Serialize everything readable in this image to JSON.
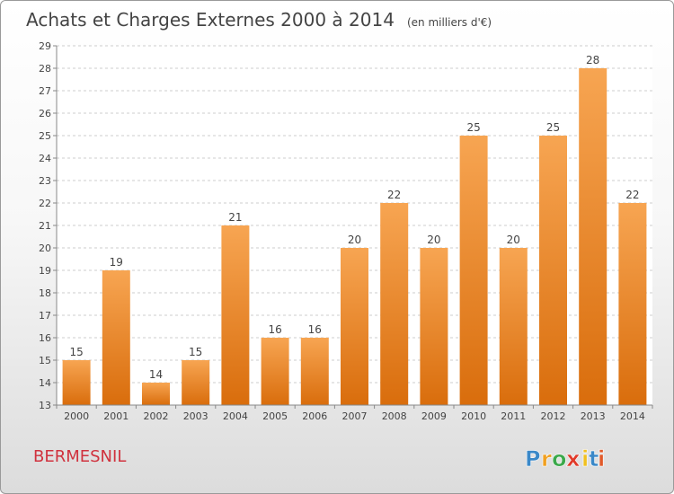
{
  "chart_data": {
    "type": "bar",
    "title": "Achats et Charges Externes 2000 à 2014",
    "subtitle": "(en milliers d'€)",
    "categories": [
      "2000",
      "2001",
      "2002",
      "2003",
      "2004",
      "2005",
      "2006",
      "2007",
      "2008",
      "2009",
      "2010",
      "2011",
      "2012",
      "2013",
      "2014"
    ],
    "values": [
      15,
      19,
      14,
      15,
      21,
      16,
      16,
      20,
      22,
      20,
      25,
      20,
      25,
      28,
      22
    ],
    "ylim": [
      13,
      29
    ],
    "yticks": [
      13,
      14,
      15,
      16,
      17,
      18,
      19,
      20,
      21,
      22,
      23,
      24,
      25,
      26,
      27,
      28,
      29
    ],
    "grid": true,
    "bar_color": "#f28a1e"
  },
  "location": "BERMESNIL",
  "logo": {
    "letters": [
      "P",
      "r",
      "o",
      "x",
      "i",
      "t",
      "i"
    ],
    "colors": [
      "#3a88c8",
      "#f0a020",
      "#3aa84a",
      "#e03a2a",
      "#f0c020",
      "#3a88c8",
      "#e05a2a"
    ]
  }
}
